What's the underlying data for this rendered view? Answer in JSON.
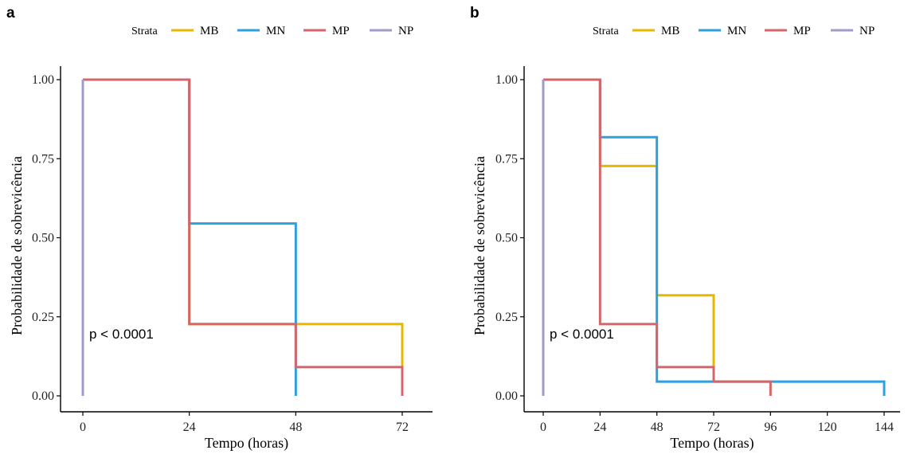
{
  "legend": {
    "title": "Strata",
    "items": [
      {
        "label": "MB",
        "color": "#E7B800"
      },
      {
        "label": "MN",
        "color": "#2E9FDF"
      },
      {
        "label": "MP",
        "color": "#D4666A"
      },
      {
        "label": "NP",
        "color": "#A09BCB"
      }
    ]
  },
  "chart_data": [
    {
      "panel": "a",
      "type": "line",
      "step": true,
      "xlabel": "Tempo (horas)",
      "ylabel": "Probabilidade de sobrevicência",
      "xlim": [
        0,
        72
      ],
      "ylim": [
        0,
        1
      ],
      "x_ticks": [
        "0",
        "24",
        "48",
        "72"
      ],
      "y_ticks": [
        "0.00",
        "0.25",
        "0.50",
        "0.75",
        "1.00"
      ],
      "annotation": "p < 0.0001",
      "series": [
        {
          "name": "MB",
          "color": "#E7B800",
          "points": [
            [
              0,
              1.0
            ],
            [
              24,
              0.227
            ],
            [
              48,
              0.227
            ],
            [
              72,
              0.227
            ],
            [
              72,
              0.091
            ]
          ]
        },
        {
          "name": "MN",
          "color": "#2E9FDF",
          "points": [
            [
              0,
              1.0
            ],
            [
              24,
              0.545
            ],
            [
              48,
              0.545
            ],
            [
              48,
              0.0
            ]
          ]
        },
        {
          "name": "MP",
          "color": "#D4666A",
          "points": [
            [
              0,
              1.0
            ],
            [
              24,
              0.227
            ],
            [
              48,
              0.091
            ],
            [
              72,
              0.091
            ],
            [
              72,
              0.0
            ]
          ]
        },
        {
          "name": "NP",
          "color": "#A09BCB",
          "points": [
            [
              0,
              1.0
            ],
            [
              0,
              0.0
            ]
          ]
        }
      ]
    },
    {
      "panel": "b",
      "type": "line",
      "step": true,
      "xlabel": "Tempo (horas)",
      "ylabel": "Probabilidade de sobrevicência",
      "xlim": [
        0,
        144
      ],
      "ylim": [
        0,
        1
      ],
      "x_ticks": [
        "0",
        "24",
        "48",
        "72",
        "96",
        "120",
        "144"
      ],
      "y_ticks": [
        "0.00",
        "0.25",
        "0.50",
        "0.75",
        "1.00"
      ],
      "annotation": "p < 0.0001",
      "series": [
        {
          "name": "MB",
          "color": "#E7B800",
          "points": [
            [
              0,
              1.0
            ],
            [
              24,
              0.727
            ],
            [
              48,
              0.318
            ],
            [
              72,
              0.045
            ],
            [
              72,
              0.045
            ]
          ]
        },
        {
          "name": "MN",
          "color": "#2E9FDF",
          "points": [
            [
              0,
              1.0
            ],
            [
              24,
              0.818
            ],
            [
              48,
              0.045
            ],
            [
              144,
              0.045
            ],
            [
              144,
              0.0
            ]
          ]
        },
        {
          "name": "MP",
          "color": "#D4666A",
          "points": [
            [
              0,
              1.0
            ],
            [
              24,
              0.227
            ],
            [
              48,
              0.091
            ],
            [
              72,
              0.045
            ],
            [
              96,
              0.045
            ],
            [
              96,
              0.0
            ]
          ]
        },
        {
          "name": "NP",
          "color": "#A09BCB",
          "points": [
            [
              0,
              1.0
            ],
            [
              0,
              0.0
            ]
          ]
        }
      ]
    }
  ]
}
